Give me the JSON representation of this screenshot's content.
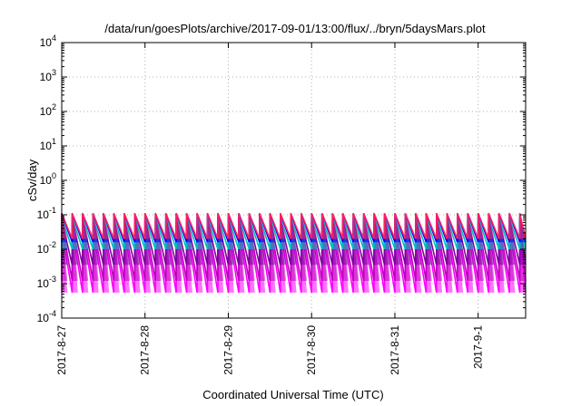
{
  "chart_data": {
    "type": "area",
    "title": "/data/run/goesPlots/archive/2017-09-01/13:00/flux/../bryn/5daysMars.plot",
    "xlabel": "Coordinated Universal Time (UTC)",
    "ylabel": "cSv/day",
    "y_scale": "log",
    "ylim_exponents": [
      -4,
      4
    ],
    "y_tick_exponents": [
      4,
      3,
      2,
      1,
      0,
      -1,
      -2,
      -3,
      -4
    ],
    "x_tick_labels": [
      "2017-8-27",
      "2017-8-28",
      "2017-8-29",
      "2017-8-30",
      "2017-8-31",
      "2017-9-1"
    ],
    "xlim_days": [
      0,
      5.57
    ],
    "x_grid": true,
    "y_grid": true,
    "pulse_period_days": 0.125,
    "bands": [
      {
        "color": "#ff00ff",
        "peak": 0.04,
        "trough": 0.00055
      },
      {
        "color": "#c000c0",
        "peak": 0.06,
        "trough": 0.0012
      },
      {
        "color": "#8000a0",
        "peak": 0.07,
        "trough": 0.0035
      },
      {
        "color": "#00c0c0",
        "peak": 0.085,
        "trough": 0.01
      },
      {
        "color": "#0000ff",
        "peak": 0.11,
        "trough": 0.016
      },
      {
        "color": "#ff2060",
        "peak": 0.11,
        "trough": 0.02
      }
    ]
  }
}
